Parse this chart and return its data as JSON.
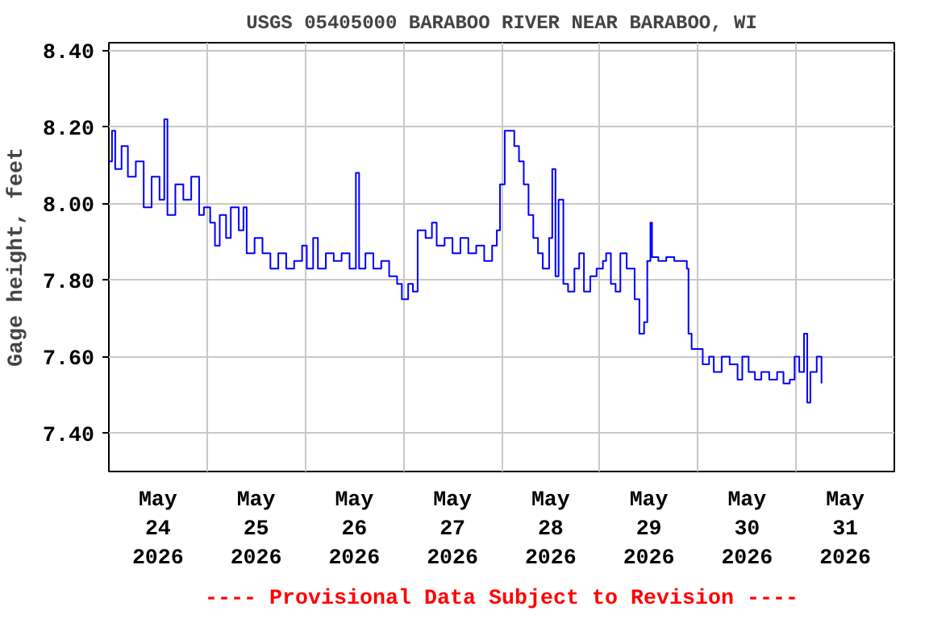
{
  "chart_data": {
    "type": "step",
    "title": "USGS 05405000 BARABOO RIVER NEAR BARABOO, WI",
    "ylabel": "Gage height, feet",
    "annotations": [
      "---- Provisional Data Subject to Revision ----"
    ],
    "x": [
      "2026-05-24T00:00",
      "2026-05-24T00:46",
      "2026-05-24T01:33",
      "2026-05-24T03:06",
      "2026-05-24T04:39",
      "2026-05-24T06:35",
      "2026-05-24T08:31",
      "2026-05-24T10:27",
      "2026-05-24T12:23",
      "2026-05-24T13:33",
      "2026-05-24T14:19",
      "2026-05-24T16:15",
      "2026-05-24T18:12",
      "2026-05-24T20:08",
      "2026-05-24T22:04",
      "2026-05-24T23:14",
      "2026-05-25T00:46",
      "2026-05-25T01:56",
      "2026-05-25T03:06",
      "2026-05-25T04:39",
      "2026-05-25T05:48",
      "2026-05-25T07:45",
      "2026-05-25T08:54",
      "2026-05-25T09:41",
      "2026-05-25T11:37",
      "2026-05-25T13:33",
      "2026-05-25T15:29",
      "2026-05-25T17:25",
      "2026-05-25T19:21",
      "2026-05-25T21:17",
      "2026-05-25T23:14",
      "2026-05-26T00:23",
      "2026-05-26T01:56",
      "2026-05-26T03:06",
      "2026-05-26T05:02",
      "2026-05-26T06:58",
      "2026-05-26T08:54",
      "2026-05-26T10:50",
      "2026-05-26T12:23",
      "2026-05-26T13:10",
      "2026-05-26T14:43",
      "2026-05-26T16:39",
      "2026-05-26T18:35",
      "2026-05-26T20:31",
      "2026-05-26T22:27",
      "2026-05-26T23:37",
      "2026-05-27T01:10",
      "2026-05-27T02:19",
      "2026-05-27T03:29",
      "2026-05-27T05:25",
      "2026-05-27T06:58",
      "2026-05-27T08:08",
      "2026-05-27T10:04",
      "2026-05-27T12:00",
      "2026-05-27T13:56",
      "2026-05-27T15:52",
      "2026-05-27T17:48",
      "2026-05-27T19:45",
      "2026-05-27T21:41",
      "2026-05-27T22:50",
      "2026-05-27T23:37",
      "2026-05-28T00:46",
      "2026-05-28T01:56",
      "2026-05-28T03:06",
      "2026-05-28T04:15",
      "2026-05-28T05:25",
      "2026-05-28T06:35",
      "2026-05-28T07:45",
      "2026-05-28T08:54",
      "2026-05-28T10:04",
      "2026-05-28T11:37",
      "2026-05-28T12:23",
      "2026-05-28T13:10",
      "2026-05-28T13:56",
      "2026-05-28T15:06",
      "2026-05-28T16:15",
      "2026-05-28T17:48",
      "2026-05-28T18:58",
      "2026-05-28T20:08",
      "2026-05-28T21:41",
      "2026-05-28T23:14",
      "2026-05-29T00:46",
      "2026-05-29T01:33",
      "2026-05-29T02:43",
      "2026-05-29T03:52",
      "2026-05-29T05:02",
      "2026-05-29T06:35",
      "2026-05-29T08:31",
      "2026-05-29T09:41",
      "2026-05-29T10:50",
      "2026-05-29T11:37",
      "2026-05-29T12:23",
      "2026-05-29T12:46",
      "2026-05-29T14:19",
      "2026-05-29T16:15",
      "2026-05-29T18:12",
      "2026-05-29T20:08",
      "2026-05-29T21:17",
      "2026-05-29T21:41",
      "2026-05-29T22:27",
      "2026-05-30T00:00",
      "2026-05-30T01:10",
      "2026-05-30T02:43",
      "2026-05-30T03:52",
      "2026-05-30T05:48",
      "2026-05-30T07:45",
      "2026-05-30T09:41",
      "2026-05-30T10:50",
      "2026-05-30T12:23",
      "2026-05-30T13:56",
      "2026-05-30T15:29",
      "2026-05-30T17:25",
      "2026-05-30T19:21",
      "2026-05-30T20:54",
      "2026-05-30T22:27",
      "2026-05-30T23:37",
      "2026-05-31T00:46",
      "2026-05-31T01:56",
      "2026-05-31T02:43",
      "2026-05-31T03:29",
      "2026-05-31T05:02",
      "2026-05-31T06:12"
    ],
    "series": [
      {
        "color": "#0000ff",
        "values": [
          8.11,
          8.19,
          8.09,
          8.15,
          8.07,
          8.11,
          7.99,
          8.07,
          8.01,
          8.22,
          7.97,
          8.05,
          8.01,
          8.07,
          7.97,
          7.99,
          7.95,
          7.89,
          7.97,
          7.91,
          7.99,
          7.93,
          7.99,
          7.87,
          7.91,
          7.87,
          7.83,
          7.87,
          7.83,
          7.85,
          7.89,
          7.83,
          7.91,
          7.83,
          7.87,
          7.85,
          7.87,
          7.83,
          8.08,
          7.83,
          7.87,
          7.83,
          7.85,
          7.81,
          7.79,
          7.75,
          7.79,
          7.77,
          7.93,
          7.91,
          7.95,
          7.89,
          7.91,
          7.87,
          7.91,
          7.87,
          7.89,
          7.85,
          7.89,
          7.93,
          8.05,
          8.19,
          8.19,
          8.15,
          8.11,
          8.05,
          7.97,
          7.91,
          7.87,
          7.83,
          7.91,
          8.09,
          7.81,
          8.01,
          7.79,
          7.77,
          7.83,
          7.87,
          7.77,
          7.81,
          7.83,
          7.85,
          7.87,
          7.79,
          7.77,
          7.87,
          7.83,
          7.75,
          7.66,
          7.69,
          7.85,
          7.95,
          7.86,
          7.85,
          7.86,
          7.85,
          7.85,
          7.83,
          7.66,
          7.62,
          7.62,
          7.58,
          7.6,
          7.56,
          7.6,
          7.58,
          7.54,
          7.6,
          7.56,
          7.54,
          7.56,
          7.54,
          7.56,
          7.53,
          7.54,
          7.6,
          7.56,
          7.66,
          7.48,
          7.56,
          7.6,
          7.53
        ]
      }
    ],
    "xlim": [
      "2026-05-24T00:00",
      "2026-06-01T00:00"
    ],
    "xticks": [
      {
        "value": "2026-05-24T00:00",
        "label": null
      },
      {
        "value": "2026-05-24T12:00",
        "label": "May\n24\n2026"
      },
      {
        "value": "2026-05-25T00:00",
        "label": null
      },
      {
        "value": "2026-05-25T12:00",
        "label": "May\n25\n2026"
      },
      {
        "value": "2026-05-26T00:00",
        "label": null
      },
      {
        "value": "2026-05-26T12:00",
        "label": "May\n26\n2026"
      },
      {
        "value": "2026-05-27T00:00",
        "label": null
      },
      {
        "value": "2026-05-27T12:00",
        "label": "May\n27\n2026"
      },
      {
        "value": "2026-05-28T00:00",
        "label": null
      },
      {
        "value": "2026-05-28T12:00",
        "label": "May\n28\n2026"
      },
      {
        "value": "2026-05-29T00:00",
        "label": null
      },
      {
        "value": "2026-05-29T12:00",
        "label": "May\n29\n2026"
      },
      {
        "value": "2026-05-30T00:00",
        "label": null
      },
      {
        "value": "2026-05-30T12:00",
        "label": "May\n30\n2026"
      },
      {
        "value": "2026-05-31T00:00",
        "label": null
      },
      {
        "value": "2026-05-31T12:00",
        "label": "May\n31\n2026"
      },
      {
        "value": "2026-06-01T00:00",
        "label": null
      }
    ],
    "ylim": [
      7.3,
      8.42
    ],
    "yticks": [
      {
        "value": 7.4,
        "label": "7.40"
      },
      {
        "value": 7.6,
        "label": "7.60"
      },
      {
        "value": 7.8,
        "label": "7.80"
      },
      {
        "value": 8.0,
        "label": "8.00"
      },
      {
        "value": 8.2,
        "label": "8.20"
      },
      {
        "value": 8.4,
        "label": "8.40"
      }
    ],
    "grid": true
  }
}
